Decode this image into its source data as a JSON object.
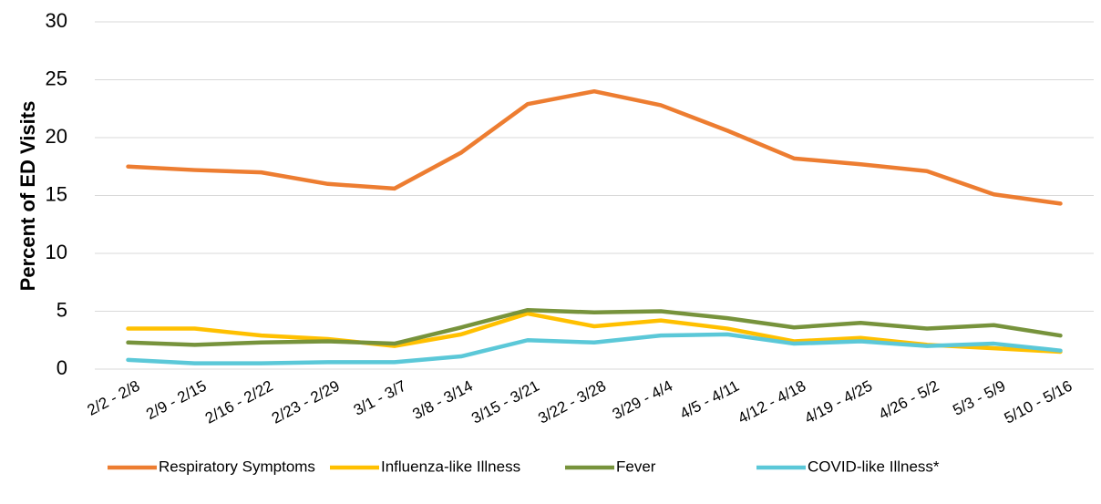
{
  "chart_data": {
    "type": "line",
    "y_label": "Percent of ED Visits",
    "categories": [
      "2/2 - 2/8",
      "2/9 - 2/15",
      "2/16 - 2/22",
      "2/23 - 2/29",
      "3/1 - 3/7",
      "3/8 - 3/14",
      "3/15 - 3/21",
      "3/22 - 3/28",
      "3/29 - 4/4",
      "4/5 - 4/11",
      "4/12 - 4/18",
      "4/19 - 4/25",
      "4/26 - 5/2",
      "5/3 - 5/9",
      "5/10 - 5/16"
    ],
    "series": [
      {
        "name": "Respiratory Symptoms",
        "color": "#ed7d31",
        "values": [
          17.5,
          17.2,
          17.0,
          16.0,
          15.6,
          18.7,
          22.9,
          24.0,
          22.8,
          20.6,
          18.2,
          17.7,
          17.1,
          15.1,
          14.3
        ]
      },
      {
        "name": "Influenza-like Illness",
        "color": "#ffc000",
        "values": [
          3.5,
          3.5,
          2.9,
          2.6,
          2.0,
          3.0,
          4.8,
          3.7,
          4.2,
          3.5,
          2.4,
          2.7,
          2.1,
          1.8,
          1.5
        ]
      },
      {
        "name": "Fever",
        "color": "#77933c",
        "values": [
          2.3,
          2.1,
          2.3,
          2.4,
          2.2,
          3.6,
          5.1,
          4.9,
          5.0,
          4.4,
          3.6,
          4.0,
          3.5,
          3.8,
          2.9
        ]
      },
      {
        "name": "COVID-like Illness*",
        "color": "#5bc8d8",
        "values": [
          0.8,
          0.5,
          0.5,
          0.6,
          0.6,
          1.1,
          2.5,
          2.3,
          2.9,
          3.0,
          2.2,
          2.4,
          2.0,
          2.2,
          1.6
        ]
      }
    ],
    "ylim": [
      0,
      30
    ],
    "yticks": [
      0,
      5,
      10,
      15,
      20,
      25,
      30
    ],
    "grid": true,
    "legend": "bottom"
  }
}
